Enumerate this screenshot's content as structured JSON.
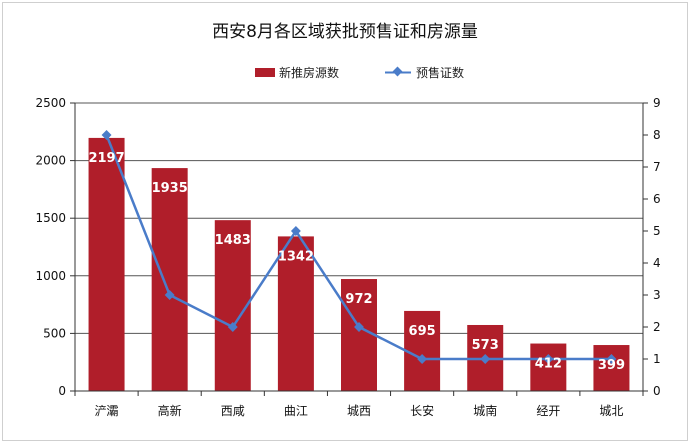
{
  "chart_data": {
    "type": "bar",
    "title": "西安8月各区域获批预售证和房源量",
    "categories": [
      "浐灞",
      "高新",
      "西咸",
      "曲江",
      "城西",
      "长安",
      "城南",
      "经开",
      "城北"
    ],
    "series": [
      {
        "name": "新推房源数",
        "type": "bar",
        "axis": "left",
        "color": "#b01e2a",
        "values": [
          2197,
          1935,
          1483,
          1342,
          972,
          695,
          573,
          412,
          399
        ]
      },
      {
        "name": "预售证数",
        "type": "line",
        "axis": "right",
        "color": "#4a7cc9",
        "values": [
          8,
          3,
          2,
          5,
          2,
          1,
          1,
          1,
          1
        ]
      }
    ],
    "y_left": {
      "min": 0,
      "max": 2500,
      "ticks": [
        "0",
        "500",
        "1000",
        "1500",
        "2000",
        "2500"
      ]
    },
    "y_right": {
      "min": 0,
      "max": 9,
      "ticks": [
        "0",
        "1",
        "2",
        "3",
        "4",
        "5",
        "6",
        "7",
        "8",
        "9"
      ]
    },
    "grid": true,
    "legend_position": "top-center",
    "data_labels": [
      "2197",
      "1935",
      "1483",
      "1342",
      "972",
      "695",
      "573",
      "412",
      "399"
    ]
  }
}
